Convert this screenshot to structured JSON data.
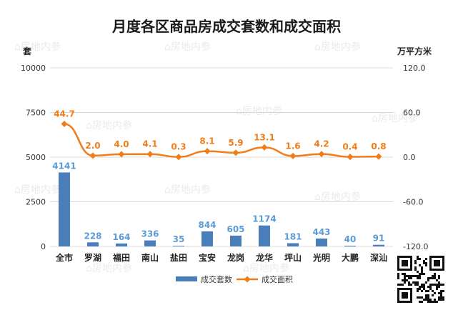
{
  "chart_data": {
    "type": "bar",
    "title": "月度各区商品房成交套数和成交面积",
    "categories": [
      "全市",
      "罗湖",
      "福田",
      "南山",
      "盐田",
      "宝安",
      "龙岗",
      "龙华",
      "坪山",
      "光明",
      "大鹏",
      "深汕"
    ],
    "series": [
      {
        "name": "成交套数",
        "type": "bar",
        "axis": "left",
        "color": "#4a7ebb",
        "values": [
          4141,
          228,
          164,
          336,
          35,
          844,
          605,
          1174,
          181,
          443,
          40,
          91
        ]
      },
      {
        "name": "成交面积",
        "type": "line",
        "axis": "right",
        "color": "#f07d1a",
        "values": [
          44.7,
          2.0,
          4.0,
          4.1,
          0.3,
          8.1,
          5.9,
          13.1,
          1.6,
          4.2,
          0.4,
          0.8
        ]
      }
    ],
    "y_left": {
      "label": "套",
      "ylim": [
        0,
        10000
      ],
      "ticks": [
        "0",
        "2500",
        "5000",
        "7500",
        "10000"
      ]
    },
    "y_right": {
      "label": "万平方米",
      "ylim": [
        -120,
        120
      ],
      "ticks": [
        "-120.0",
        "-60.0",
        "0.0",
        "60.0",
        "120.0"
      ]
    },
    "grid": true,
    "legend_position": "bottom",
    "watermark": "房地内参"
  }
}
